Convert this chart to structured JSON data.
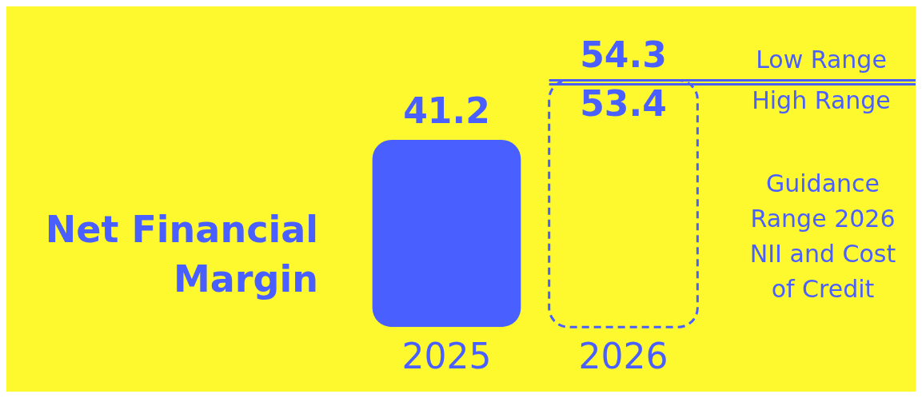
{
  "chart_data": {
    "type": "bar",
    "title": "Net Financial Margin",
    "categories": [
      "2025",
      "2026"
    ],
    "series": [
      {
        "color": "#4a5fff",
        "values": [
          41.2,
          null
        ],
        "value_labels": [
          "41.2",
          null
        ]
      },
      {
        "color": "#4a5fff",
        "values": [
          null,
          54.3
        ],
        "line_style": "dashed"
      }
    ],
    "grid": false,
    "legend": false,
    "tick_labels": "x",
    "ref_lines": [
      {
        "axis": "y",
        "value": 54.3,
        "label": "Low Range",
        "color": "#4a5fff"
      },
      {
        "axis": "y",
        "value": 53.4,
        "label": "High Range",
        "color": "#4a5fff"
      }
    ],
    "annotations": [
      {
        "text": "54.3",
        "x": "2026",
        "y": 54.3
      },
      {
        "text": "53.4",
        "x": "2026",
        "y": 53.4
      },
      "Guidance Range 2026 NII and Cost of Credit"
    ]
  }
}
